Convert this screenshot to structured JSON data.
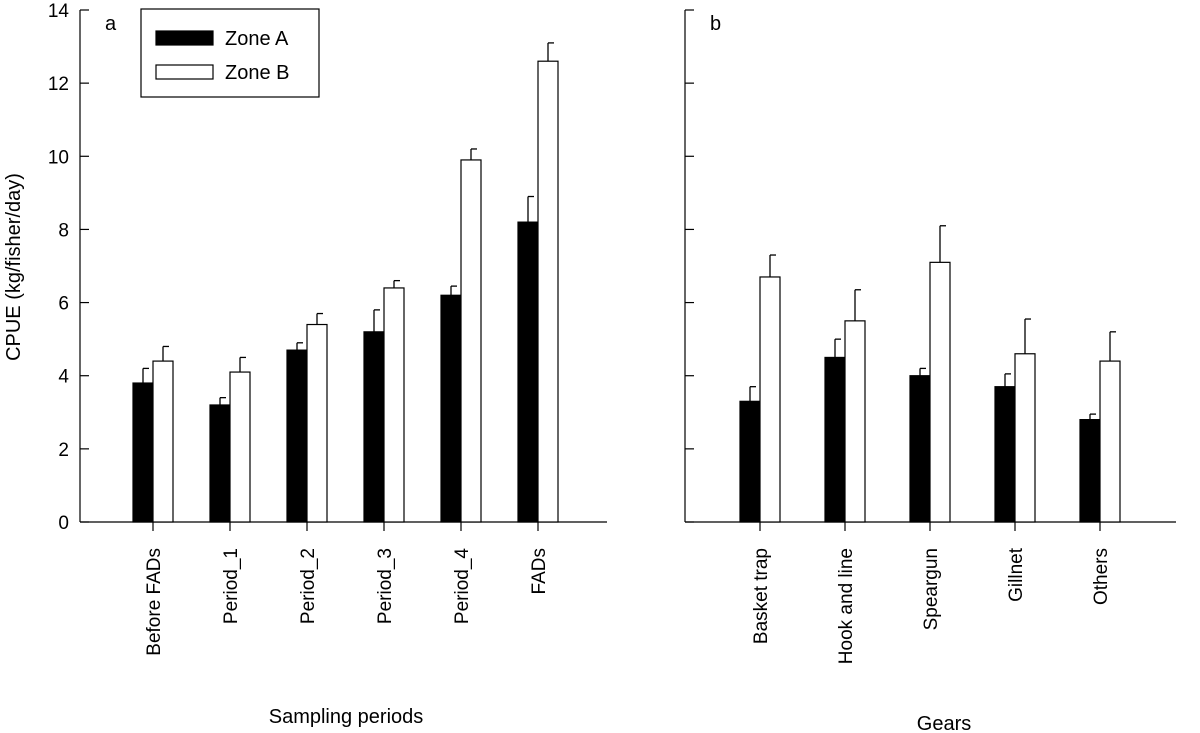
{
  "chart_data": {
    "type": "bar",
    "ylabel": "CPUE (kg/fisher/day)",
    "ylim": [
      0,
      14
    ],
    "yticks": [
      0,
      2,
      4,
      6,
      8,
      10,
      12,
      14
    ],
    "legend": {
      "position": "top-left",
      "entries": [
        {
          "name": "Zone A",
          "color": "#000000"
        },
        {
          "name": "Zone B",
          "color": "#ffffff"
        }
      ]
    },
    "panels": [
      {
        "letter": "a",
        "xlabel": "Sampling periods",
        "categories": [
          "Before FADs",
          "Period_1",
          "Period_2",
          "Period_3",
          "Period_4",
          "FADs"
        ],
        "series": [
          {
            "name": "Zone A",
            "values": [
              3.8,
              3.2,
              4.7,
              5.2,
              6.2,
              8.2
            ],
            "errors": [
              0.4,
              0.2,
              0.2,
              0.6,
              0.25,
              0.7
            ]
          },
          {
            "name": "Zone B",
            "values": [
              4.4,
              4.1,
              5.4,
              6.4,
              9.9,
              12.6
            ],
            "errors": [
              0.4,
              0.4,
              0.3,
              0.2,
              0.3,
              0.5
            ]
          }
        ]
      },
      {
        "letter": "b",
        "xlabel": "Gears",
        "categories": [
          "Basket trap",
          "Hook and line",
          "Speargun",
          "Gillnet",
          "Others"
        ],
        "series": [
          {
            "name": "Zone A",
            "values": [
              3.3,
              4.5,
              4.0,
              3.7,
              2.8
            ],
            "errors": [
              0.4,
              0.5,
              0.2,
              0.35,
              0.15
            ]
          },
          {
            "name": "Zone B",
            "values": [
              6.7,
              5.5,
              7.1,
              4.6,
              4.4
            ],
            "errors": [
              0.6,
              0.85,
              1.0,
              0.95,
              0.8
            ]
          }
        ]
      }
    ]
  }
}
